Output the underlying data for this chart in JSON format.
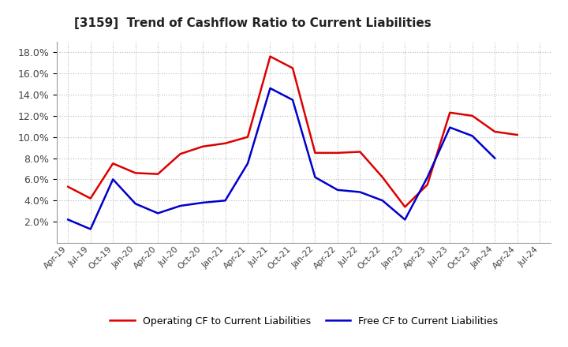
{
  "title": "[3159]  Trend of Cashflow Ratio to Current Liabilities",
  "x_labels": [
    "Apr-19",
    "Jul-19",
    "Oct-19",
    "Jan-20",
    "Apr-20",
    "Jul-20",
    "Oct-20",
    "Jan-21",
    "Apr-21",
    "Jul-21",
    "Oct-21",
    "Jan-22",
    "Apr-22",
    "Jul-22",
    "Oct-22",
    "Jan-23",
    "Apr-23",
    "Jul-23",
    "Oct-23",
    "Jan-24",
    "Apr-24",
    "Jul-24"
  ],
  "operating_cf": [
    5.3,
    4.2,
    7.5,
    6.6,
    6.5,
    8.4,
    9.1,
    9.4,
    10.0,
    17.6,
    16.5,
    8.5,
    8.5,
    8.6,
    6.2,
    3.4,
    5.5,
    12.3,
    12.0,
    10.5,
    10.2,
    null
  ],
  "free_cf": [
    2.2,
    1.3,
    6.0,
    3.7,
    2.8,
    3.5,
    3.8,
    4.0,
    7.5,
    14.6,
    13.5,
    6.2,
    5.0,
    4.8,
    4.0,
    2.2,
    6.2,
    10.9,
    10.1,
    8.0,
    null,
    null
  ],
  "operating_color": "#dd0000",
  "free_color": "#0000cc",
  "ylim": [
    0.0,
    19.0
  ],
  "yticks": [
    2,
    4,
    6,
    8,
    10,
    12,
    14,
    16,
    18
  ],
  "background_color": "#ffffff",
  "plot_bg_color": "#ffffff",
  "grid_color": "#bbbbbb",
  "legend_labels": [
    "Operating CF to Current Liabilities",
    "Free CF to Current Liabilities"
  ]
}
